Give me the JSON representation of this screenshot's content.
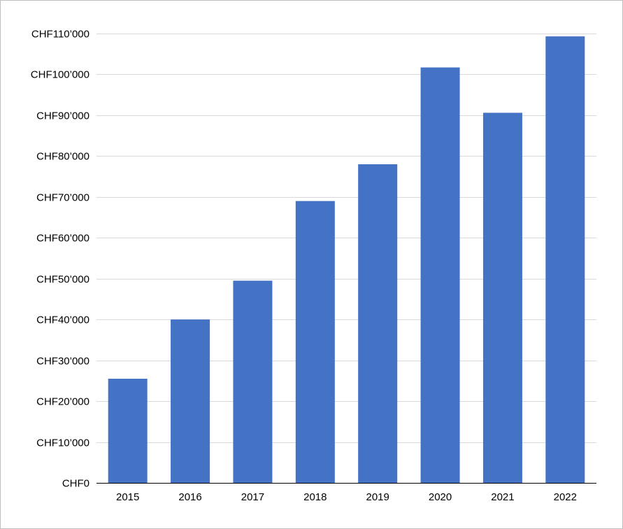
{
  "chart_data": {
    "type": "bar",
    "title": "",
    "xlabel": "",
    "ylabel": "",
    "categories": [
      "2015",
      "2016",
      "2017",
      "2018",
      "2019",
      "2020",
      "2021",
      "2022"
    ],
    "values": [
      25500,
      40000,
      49500,
      69000,
      78000,
      101700,
      90600,
      109300
    ],
    "ylim": [
      0,
      110000
    ],
    "y_ticks": [
      {
        "value": 0,
        "label": "CHF0"
      },
      {
        "value": 10000,
        "label": "CHF10’000"
      },
      {
        "value": 20000,
        "label": "CHF20’000"
      },
      {
        "value": 30000,
        "label": "CHF30’000"
      },
      {
        "value": 40000,
        "label": "CHF40’000"
      },
      {
        "value": 50000,
        "label": "CHF50’000"
      },
      {
        "value": 60000,
        "label": "CHF60’000"
      },
      {
        "value": 70000,
        "label": "CHF70’000"
      },
      {
        "value": 80000,
        "label": "CHF80’000"
      },
      {
        "value": 90000,
        "label": "CHF90’000"
      },
      {
        "value": 100000,
        "label": "CHF100’000"
      },
      {
        "value": 110000,
        "label": "CHF110’000"
      }
    ],
    "grid": true,
    "legend": "none",
    "colors": {
      "bar": "#4472C4",
      "grid": "#d9d9d9",
      "axis": "#000000"
    }
  }
}
